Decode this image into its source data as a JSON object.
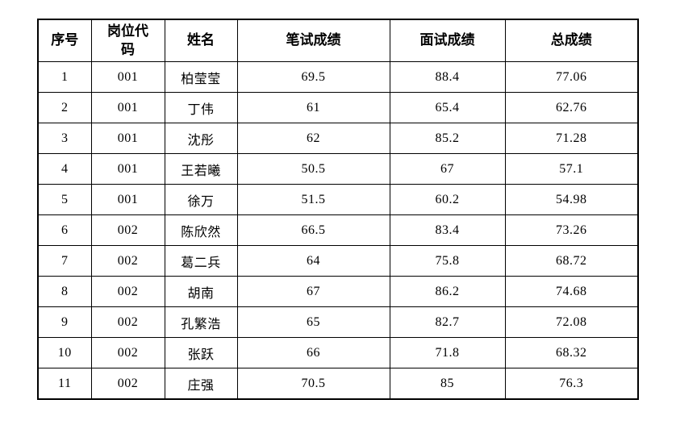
{
  "table": {
    "columns": [
      "序号",
      "岗位代码",
      "姓名",
      "笔试成绩",
      "面试成绩",
      "总成绩"
    ],
    "rows": [
      [
        "1",
        "001",
        "柏莹莹",
        "69.5",
        "88.4",
        "77.06"
      ],
      [
        "2",
        "001",
        "丁伟",
        "61",
        "65.4",
        "62.76"
      ],
      [
        "3",
        "001",
        "沈彤",
        "62",
        "85.2",
        "71.28"
      ],
      [
        "4",
        "001",
        "王若曦",
        "50.5",
        "67",
        "57.1"
      ],
      [
        "5",
        "001",
        "徐万",
        "51.5",
        "60.2",
        "54.98"
      ],
      [
        "6",
        "002",
        "陈欣然",
        "66.5",
        "83.4",
        "73.26"
      ],
      [
        "7",
        "002",
        "葛二兵",
        "64",
        "75.8",
        "68.72"
      ],
      [
        "8",
        "002",
        "胡南",
        "67",
        "86.2",
        "74.68"
      ],
      [
        "9",
        "002",
        "孔繁浩",
        "65",
        "82.7",
        "72.08"
      ],
      [
        "10",
        "002",
        "张跃",
        "66",
        "71.8",
        "68.32"
      ],
      [
        "11",
        "002",
        "庄强",
        "70.5",
        "85",
        "76.3"
      ]
    ],
    "colors": {
      "border": "#000000",
      "text": "#000000",
      "background": "#ffffff"
    }
  }
}
